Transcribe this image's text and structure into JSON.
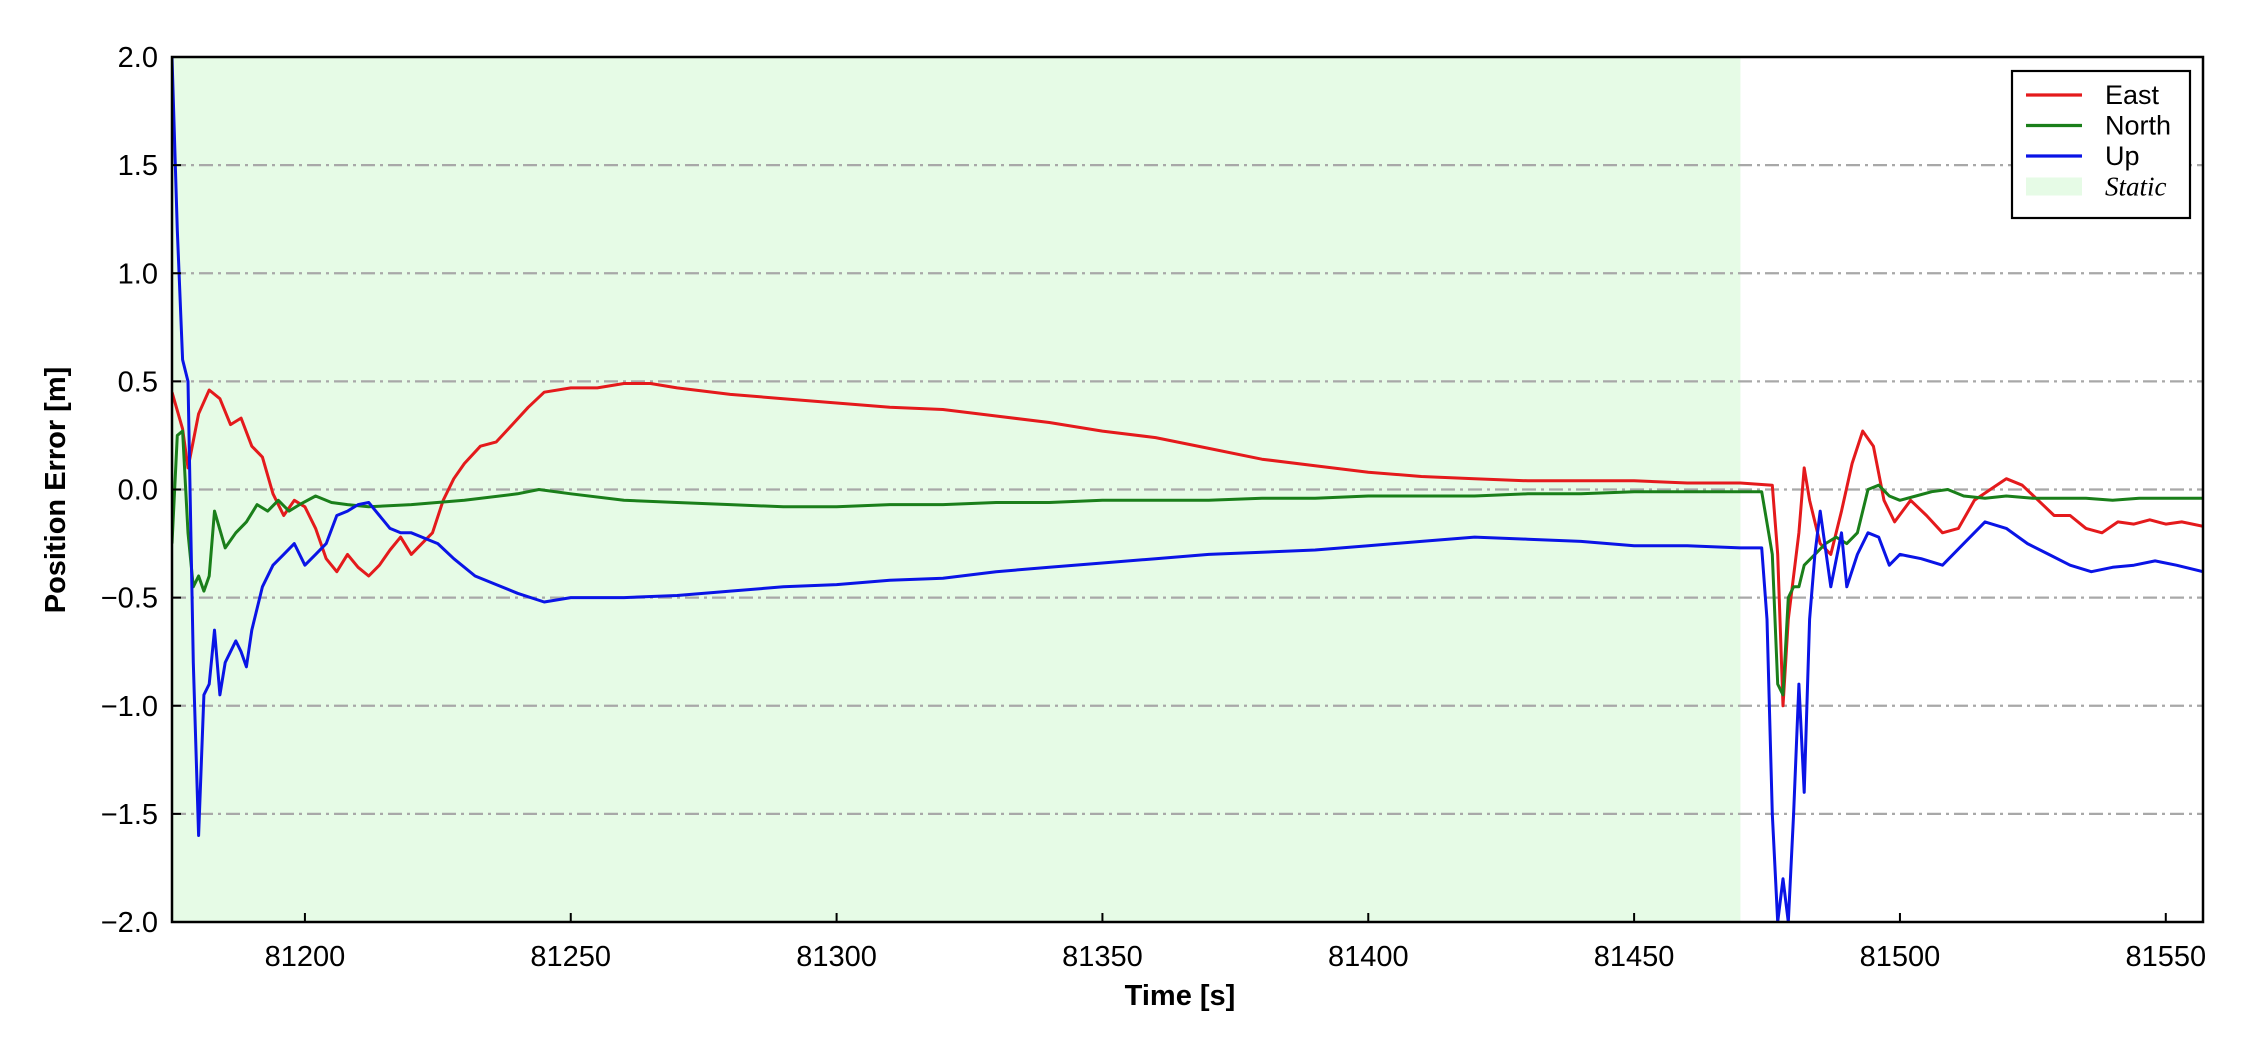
{
  "chart_data": {
    "type": "line",
    "xlabel": "Time [s]",
    "ylabel": "Position Error [m]",
    "xlim": [
      81175,
      81557
    ],
    "ylim": [
      -2.0,
      2.0
    ],
    "x_ticks": [
      81200,
      81250,
      81300,
      81350,
      81400,
      81450,
      81500,
      81550
    ],
    "x_tick_labels": [
      "81200",
      "81250",
      "81300",
      "81350",
      "81400",
      "81450",
      "81500",
      "81550"
    ],
    "y_ticks": [
      2.0,
      1.5,
      1.0,
      0.5,
      0.0,
      -0.5,
      -1.0,
      -1.5,
      -2.0
    ],
    "y_tick_labels": [
      "2.0",
      "1.5",
      "1.0",
      "0.5",
      "0.0",
      "−0.5",
      "−1.0",
      "−1.5",
      "−2.0"
    ],
    "grid": "horizontal dash-dot",
    "legend_position": "top-right",
    "static_region": {
      "label": "Static",
      "x": [
        81175,
        81470
      ],
      "color": "#e6fbe6"
    },
    "series": [
      {
        "name": "East",
        "color": "#e41a1c",
        "points": [
          [
            81175,
            0.45
          ],
          [
            81177,
            0.28
          ],
          [
            81178,
            0.1
          ],
          [
            81180,
            0.35
          ],
          [
            81182,
            0.46
          ],
          [
            81184,
            0.42
          ],
          [
            81186,
            0.3
          ],
          [
            81188,
            0.33
          ],
          [
            81190,
            0.2
          ],
          [
            81192,
            0.15
          ],
          [
            81194,
            -0.02
          ],
          [
            81196,
            -0.12
          ],
          [
            81198,
            -0.05
          ],
          [
            81200,
            -0.08
          ],
          [
            81202,
            -0.18
          ],
          [
            81204,
            -0.32
          ],
          [
            81206,
            -0.38
          ],
          [
            81208,
            -0.3
          ],
          [
            81210,
            -0.36
          ],
          [
            81212,
            -0.4
          ],
          [
            81214,
            -0.35
          ],
          [
            81216,
            -0.28
          ],
          [
            81218,
            -0.22
          ],
          [
            81220,
            -0.3
          ],
          [
            81222,
            -0.25
          ],
          [
            81224,
            -0.2
          ],
          [
            81226,
            -0.05
          ],
          [
            81228,
            0.05
          ],
          [
            81230,
            0.12
          ],
          [
            81233,
            0.2
          ],
          [
            81236,
            0.22
          ],
          [
            81239,
            0.3
          ],
          [
            81242,
            0.38
          ],
          [
            81245,
            0.45
          ],
          [
            81250,
            0.47
          ],
          [
            81255,
            0.47
          ],
          [
            81260,
            0.49
          ],
          [
            81265,
            0.49
          ],
          [
            81270,
            0.47
          ],
          [
            81280,
            0.44
          ],
          [
            81290,
            0.42
          ],
          [
            81300,
            0.4
          ],
          [
            81310,
            0.38
          ],
          [
            81320,
            0.37
          ],
          [
            81330,
            0.34
          ],
          [
            81340,
            0.31
          ],
          [
            81350,
            0.27
          ],
          [
            81360,
            0.24
          ],
          [
            81370,
            0.19
          ],
          [
            81380,
            0.14
          ],
          [
            81390,
            0.11
          ],
          [
            81400,
            0.08
          ],
          [
            81410,
            0.06
          ],
          [
            81420,
            0.05
          ],
          [
            81430,
            0.04
          ],
          [
            81440,
            0.04
          ],
          [
            81450,
            0.04
          ],
          [
            81460,
            0.03
          ],
          [
            81470,
            0.03
          ],
          [
            81476,
            0.02
          ],
          [
            81477,
            -0.3
          ],
          [
            81478,
            -1.0
          ],
          [
            81479,
            -0.6
          ],
          [
            81480,
            -0.4
          ],
          [
            81481,
            -0.2
          ],
          [
            81482,
            0.1
          ],
          [
            81483,
            -0.05
          ],
          [
            81485,
            -0.25
          ],
          [
            81487,
            -0.3
          ],
          [
            81489,
            -0.1
          ],
          [
            81491,
            0.12
          ],
          [
            81493,
            0.27
          ],
          [
            81495,
            0.2
          ],
          [
            81497,
            -0.05
          ],
          [
            81499,
            -0.15
          ],
          [
            81502,
            -0.05
          ],
          [
            81505,
            -0.12
          ],
          [
            81508,
            -0.2
          ],
          [
            81511,
            -0.18
          ],
          [
            81514,
            -0.05
          ],
          [
            81517,
            0.0
          ],
          [
            81520,
            0.05
          ],
          [
            81523,
            0.02
          ],
          [
            81526,
            -0.05
          ],
          [
            81529,
            -0.12
          ],
          [
            81532,
            -0.12
          ],
          [
            81535,
            -0.18
          ],
          [
            81538,
            -0.2
          ],
          [
            81541,
            -0.15
          ],
          [
            81544,
            -0.16
          ],
          [
            81547,
            -0.14
          ],
          [
            81550,
            -0.16
          ],
          [
            81553,
            -0.15
          ],
          [
            81557,
            -0.17
          ]
        ]
      },
      {
        "name": "North",
        "color": "#1a7f1a",
        "points": [
          [
            81175,
            -0.25
          ],
          [
            81176,
            0.25
          ],
          [
            81177,
            0.27
          ],
          [
            81178,
            -0.2
          ],
          [
            81179,
            -0.45
          ],
          [
            81180,
            -0.4
          ],
          [
            81181,
            -0.47
          ],
          [
            81182,
            -0.4
          ],
          [
            81183,
            -0.1
          ],
          [
            81185,
            -0.27
          ],
          [
            81187,
            -0.2
          ],
          [
            81189,
            -0.15
          ],
          [
            81191,
            -0.07
          ],
          [
            81193,
            -0.1
          ],
          [
            81195,
            -0.05
          ],
          [
            81197,
            -0.1
          ],
          [
            81199,
            -0.07
          ],
          [
            81202,
            -0.03
          ],
          [
            81205,
            -0.06
          ],
          [
            81208,
            -0.07
          ],
          [
            81212,
            -0.08
          ],
          [
            81220,
            -0.07
          ],
          [
            81230,
            -0.05
          ],
          [
            81240,
            -0.02
          ],
          [
            81244,
            0.0
          ],
          [
            81250,
            -0.02
          ],
          [
            81260,
            -0.05
          ],
          [
            81270,
            -0.06
          ],
          [
            81280,
            -0.07
          ],
          [
            81290,
            -0.08
          ],
          [
            81300,
            -0.08
          ],
          [
            81310,
            -0.07
          ],
          [
            81320,
            -0.07
          ],
          [
            81330,
            -0.06
          ],
          [
            81340,
            -0.06
          ],
          [
            81350,
            -0.05
          ],
          [
            81360,
            -0.05
          ],
          [
            81370,
            -0.05
          ],
          [
            81380,
            -0.04
          ],
          [
            81390,
            -0.04
          ],
          [
            81400,
            -0.03
          ],
          [
            81410,
            -0.03
          ],
          [
            81420,
            -0.03
          ],
          [
            81430,
            -0.02
          ],
          [
            81440,
            -0.02
          ],
          [
            81450,
            -0.01
          ],
          [
            81460,
            -0.01
          ],
          [
            81470,
            -0.01
          ],
          [
            81474,
            -0.01
          ],
          [
            81476,
            -0.3
          ],
          [
            81477,
            -0.9
          ],
          [
            81478,
            -0.95
          ],
          [
            81479,
            -0.5
          ],
          [
            81480,
            -0.45
          ],
          [
            81481,
            -0.45
          ],
          [
            81482,
            -0.35
          ],
          [
            81484,
            -0.3
          ],
          [
            81486,
            -0.25
          ],
          [
            81488,
            -0.22
          ],
          [
            81490,
            -0.25
          ],
          [
            81492,
            -0.2
          ],
          [
            81494,
            0.0
          ],
          [
            81496,
            0.02
          ],
          [
            81498,
            -0.03
          ],
          [
            81500,
            -0.05
          ],
          [
            81503,
            -0.03
          ],
          [
            81506,
            -0.01
          ],
          [
            81509,
            0.0
          ],
          [
            81512,
            -0.03
          ],
          [
            81516,
            -0.04
          ],
          [
            81520,
            -0.03
          ],
          [
            81525,
            -0.04
          ],
          [
            81530,
            -0.04
          ],
          [
            81535,
            -0.04
          ],
          [
            81540,
            -0.05
          ],
          [
            81545,
            -0.04
          ],
          [
            81550,
            -0.04
          ],
          [
            81557,
            -0.04
          ]
        ]
      },
      {
        "name": "Up",
        "color": "#0a14e6",
        "points": [
          [
            81175,
            2.0
          ],
          [
            81176,
            1.2
          ],
          [
            81177,
            0.6
          ],
          [
            81178,
            0.5
          ],
          [
            81179,
            -0.8
          ],
          [
            81180,
            -1.6
          ],
          [
            81181,
            -0.95
          ],
          [
            81182,
            -0.9
          ],
          [
            81183,
            -0.65
          ],
          [
            81184,
            -0.95
          ],
          [
            81185,
            -0.8
          ],
          [
            81186,
            -0.75
          ],
          [
            81187,
            -0.7
          ],
          [
            81188,
            -0.75
          ],
          [
            81189,
            -0.82
          ],
          [
            81190,
            -0.65
          ],
          [
            81192,
            -0.45
          ],
          [
            81194,
            -0.35
          ],
          [
            81196,
            -0.3
          ],
          [
            81198,
            -0.25
          ],
          [
            81200,
            -0.35
          ],
          [
            81202,
            -0.3
          ],
          [
            81204,
            -0.25
          ],
          [
            81206,
            -0.12
          ],
          [
            81208,
            -0.1
          ],
          [
            81210,
            -0.07
          ],
          [
            81212,
            -0.06
          ],
          [
            81214,
            -0.12
          ],
          [
            81216,
            -0.18
          ],
          [
            81218,
            -0.2
          ],
          [
            81220,
            -0.2
          ],
          [
            81222,
            -0.22
          ],
          [
            81225,
            -0.25
          ],
          [
            81228,
            -0.32
          ],
          [
            81232,
            -0.4
          ],
          [
            81236,
            -0.44
          ],
          [
            81240,
            -0.48
          ],
          [
            81245,
            -0.52
          ],
          [
            81250,
            -0.5
          ],
          [
            81260,
            -0.5
          ],
          [
            81270,
            -0.49
          ],
          [
            81280,
            -0.47
          ],
          [
            81290,
            -0.45
          ],
          [
            81300,
            -0.44
          ],
          [
            81310,
            -0.42
          ],
          [
            81320,
            -0.41
          ],
          [
            81330,
            -0.38
          ],
          [
            81340,
            -0.36
          ],
          [
            81350,
            -0.34
          ],
          [
            81360,
            -0.32
          ],
          [
            81370,
            -0.3
          ],
          [
            81380,
            -0.29
          ],
          [
            81390,
            -0.28
          ],
          [
            81400,
            -0.26
          ],
          [
            81410,
            -0.24
          ],
          [
            81420,
            -0.22
          ],
          [
            81430,
            -0.23
          ],
          [
            81440,
            -0.24
          ],
          [
            81450,
            -0.26
          ],
          [
            81460,
            -0.26
          ],
          [
            81470,
            -0.27
          ],
          [
            81474,
            -0.27
          ],
          [
            81475,
            -0.6
          ],
          [
            81476,
            -1.5
          ],
          [
            81477,
            -2.0
          ],
          [
            81478,
            -1.8
          ],
          [
            81479,
            -2.0
          ],
          [
            81480,
            -1.5
          ],
          [
            81481,
            -0.9
          ],
          [
            81482,
            -1.4
          ],
          [
            81483,
            -0.6
          ],
          [
            81484,
            -0.3
          ],
          [
            81485,
            -0.1
          ],
          [
            81487,
            -0.45
          ],
          [
            81489,
            -0.2
          ],
          [
            81490,
            -0.45
          ],
          [
            81492,
            -0.3
          ],
          [
            81494,
            -0.2
          ],
          [
            81496,
            -0.22
          ],
          [
            81498,
            -0.35
          ],
          [
            81500,
            -0.3
          ],
          [
            81504,
            -0.32
          ],
          [
            81508,
            -0.35
          ],
          [
            81512,
            -0.25
          ],
          [
            81516,
            -0.15
          ],
          [
            81520,
            -0.18
          ],
          [
            81524,
            -0.25
          ],
          [
            81528,
            -0.3
          ],
          [
            81532,
            -0.35
          ],
          [
            81536,
            -0.38
          ],
          [
            81540,
            -0.36
          ],
          [
            81544,
            -0.35
          ],
          [
            81548,
            -0.33
          ],
          [
            81552,
            -0.35
          ],
          [
            81557,
            -0.38
          ]
        ]
      }
    ]
  }
}
